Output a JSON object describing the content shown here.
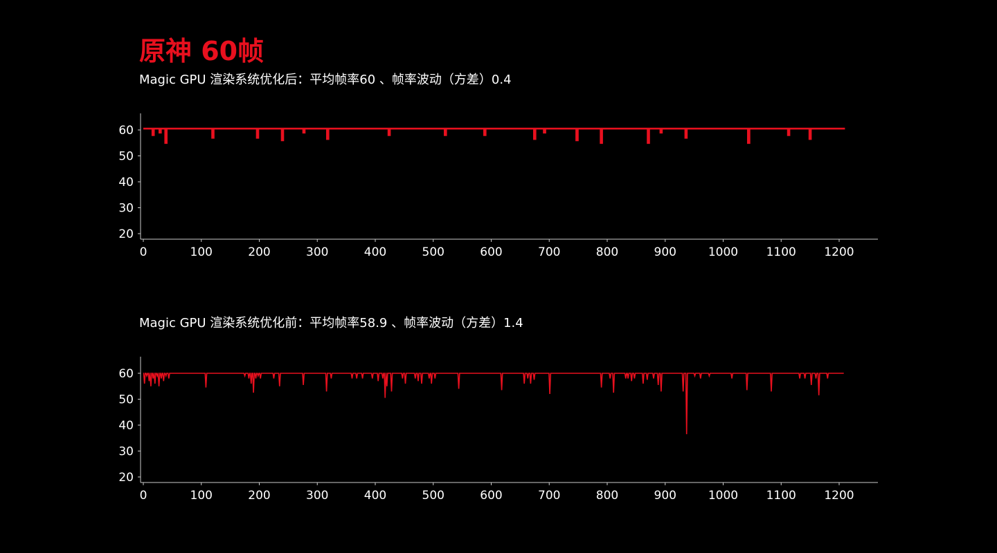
{
  "page": {
    "title": "原神 60帧",
    "accent_color": "#e8101e",
    "background_color": "#000000",
    "text_color": "#ffffff",
    "axis_color": "#cccccc"
  },
  "chart_data": [
    {
      "type": "line",
      "title": "Magic GPU 渲染系统优化后：平均帧率60 、帧率波动（方差）0.4",
      "xlabel": "",
      "ylabel": "",
      "xlim": [
        0,
        1270
      ],
      "ylim": [
        20,
        66
      ],
      "xticks": [
        0,
        100,
        200,
        300,
        400,
        500,
        600,
        700,
        800,
        900,
        1000,
        1100,
        1200
      ],
      "yticks": [
        20,
        30,
        40,
        50,
        60
      ],
      "grid": false,
      "line_color": "#e8101e",
      "x_range": [
        0,
        1210
      ],
      "baseline": 60.5,
      "dips": [
        [
          17,
          58
        ],
        [
          29,
          59
        ],
        [
          39,
          55
        ],
        [
          120,
          57
        ],
        [
          197,
          57
        ],
        [
          240,
          56
        ],
        [
          277,
          59
        ],
        [
          318,
          56.5
        ],
        [
          424,
          58
        ],
        [
          521,
          58
        ],
        [
          589,
          58
        ],
        [
          675,
          56.5
        ],
        [
          692,
          59
        ],
        [
          748,
          56
        ],
        [
          790,
          55
        ],
        [
          871,
          55
        ],
        [
          893,
          59
        ],
        [
          936,
          57
        ],
        [
          1044,
          55
        ],
        [
          1113,
          58
        ],
        [
          1150,
          56.5
        ]
      ]
    },
    {
      "type": "line",
      "title": "Magic GPU 渲染系统优化前：平均帧率58.9 、帧率波动（方差）1.4",
      "xlabel": "",
      "ylabel": "",
      "xlim": [
        0,
        1270
      ],
      "ylim": [
        20,
        66
      ],
      "xticks": [
        0,
        100,
        200,
        300,
        400,
        500,
        600,
        700,
        800,
        900,
        1000,
        1100,
        1200
      ],
      "yticks": [
        20,
        30,
        40,
        50,
        60
      ],
      "grid": false,
      "line_color": "#e8101e",
      "x_range": [
        0,
        1208
      ],
      "baseline": 60,
      "dips": [
        [
          2,
          56
        ],
        [
          6,
          59
        ],
        [
          10,
          57
        ],
        [
          13,
          55
        ],
        [
          17,
          58
        ],
        [
          20,
          56
        ],
        [
          24,
          59
        ],
        [
          27,
          55
        ],
        [
          31,
          58
        ],
        [
          35,
          57
        ],
        [
          39,
          59
        ],
        [
          44,
          58
        ],
        [
          108,
          54.5
        ],
        [
          175,
          59
        ],
        [
          182,
          58
        ],
        [
          186,
          56
        ],
        [
          190,
          52.5
        ],
        [
          194,
          58
        ],
        [
          198,
          59
        ],
        [
          202,
          58
        ],
        [
          225,
          58
        ],
        [
          235,
          55
        ],
        [
          276,
          55.5
        ],
        [
          316,
          53
        ],
        [
          324,
          58
        ],
        [
          360,
          58
        ],
        [
          368,
          58
        ],
        [
          378,
          58
        ],
        [
          395,
          58
        ],
        [
          405,
          57
        ],
        [
          413,
          58
        ],
        [
          417,
          50.5
        ],
        [
          420,
          55
        ],
        [
          428,
          53
        ],
        [
          447,
          58
        ],
        [
          452,
          56
        ],
        [
          469,
          58
        ],
        [
          474,
          57
        ],
        [
          480,
          56
        ],
        [
          493,
          58
        ],
        [
          497,
          56
        ],
        [
          503,
          58
        ],
        [
          544,
          54
        ],
        [
          618,
          53.5
        ],
        [
          657,
          56
        ],
        [
          663,
          58
        ],
        [
          668,
          56
        ],
        [
          674,
          57.5
        ],
        [
          701,
          52
        ],
        [
          790,
          54.5
        ],
        [
          805,
          58
        ],
        [
          811,
          52.5
        ],
        [
          832,
          58
        ],
        [
          836,
          58
        ],
        [
          842,
          57
        ],
        [
          847,
          58
        ],
        [
          862,
          56
        ],
        [
          869,
          57.5
        ],
        [
          880,
          58
        ],
        [
          888,
          55.5
        ],
        [
          893,
          53
        ],
        [
          931,
          53
        ],
        [
          937,
          36.5
        ],
        [
          951,
          59
        ],
        [
          961,
          58
        ],
        [
          976,
          59
        ],
        [
          1015,
          58
        ],
        [
          1041,
          53.5
        ],
        [
          1083,
          53
        ],
        [
          1132,
          58
        ],
        [
          1141,
          58
        ],
        [
          1152,
          55.5
        ],
        [
          1160,
          58
        ],
        [
          1165,
          51.5
        ],
        [
          1180,
          58
        ]
      ]
    }
  ],
  "labels": {
    "sub_after": "Magic GPU 渲染系统优化后：平均帧率60 、帧率波动（方差）0.4",
    "sub_before": "Magic GPU 渲染系统优化前：平均帧率58.9 、帧率波动（方差）1.4"
  }
}
